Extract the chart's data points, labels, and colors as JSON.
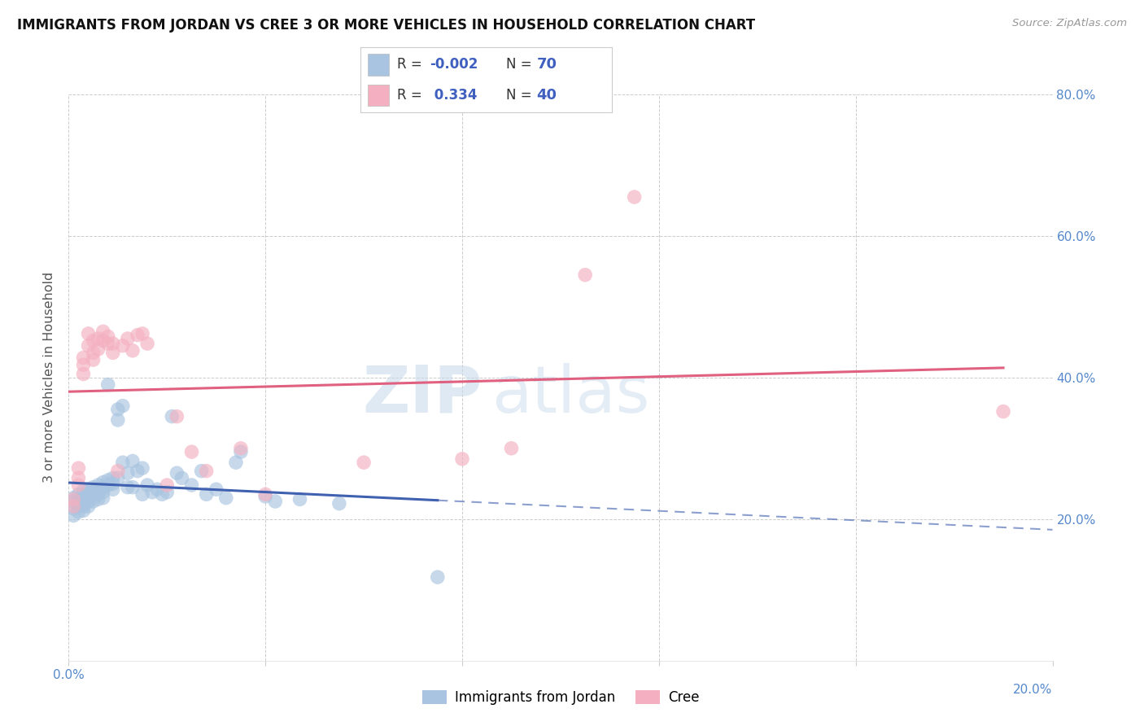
{
  "title": "IMMIGRANTS FROM JORDAN VS CREE 3 OR MORE VEHICLES IN HOUSEHOLD CORRELATION CHART",
  "source": "Source: ZipAtlas.com",
  "ylabel": "3 or more Vehicles in Household",
  "xlim": [
    0.0,
    0.2
  ],
  "ylim": [
    0.0,
    0.8
  ],
  "xtick_vals": [
    0.0,
    0.04,
    0.08,
    0.12,
    0.16,
    0.2
  ],
  "ytick_vals": [
    0.0,
    0.2,
    0.4,
    0.6,
    0.8
  ],
  "xtick_labels": [
    "0.0%",
    "",
    "",
    "",
    "",
    "20.0%"
  ],
  "ytick_labels": [
    "",
    "20.0%",
    "40.0%",
    "60.0%",
    "80.0%"
  ],
  "legend_r_jordan": "-0.002",
  "legend_n_jordan": "70",
  "legend_r_cree": "0.334",
  "legend_n_cree": "40",
  "color_jordan": "#a8c4e0",
  "color_cree": "#f4b0c0",
  "line_color_jordan": "#4060b0",
  "line_color_cree": "#e06080",
  "watermark_zip": "ZIP",
  "watermark_atlas": "atlas",
  "jordan_x": [
    0.001,
    0.001,
    0.001,
    0.001,
    0.002,
    0.002,
    0.002,
    0.002,
    0.002,
    0.003,
    0.003,
    0.003,
    0.003,
    0.003,
    0.003,
    0.004,
    0.004,
    0.004,
    0.004,
    0.004,
    0.005,
    0.005,
    0.005,
    0.005,
    0.006,
    0.006,
    0.006,
    0.006,
    0.007,
    0.007,
    0.007,
    0.007,
    0.008,
    0.008,
    0.008,
    0.009,
    0.009,
    0.009,
    0.01,
    0.01,
    0.01,
    0.011,
    0.011,
    0.012,
    0.012,
    0.013,
    0.013,
    0.014,
    0.015,
    0.015,
    0.016,
    0.017,
    0.018,
    0.019,
    0.02,
    0.021,
    0.022,
    0.023,
    0.025,
    0.027,
    0.028,
    0.03,
    0.032,
    0.034,
    0.035,
    0.04,
    0.042,
    0.047,
    0.055,
    0.075
  ],
  "jordan_y": [
    0.23,
    0.225,
    0.215,
    0.205,
    0.235,
    0.228,
    0.222,
    0.218,
    0.21,
    0.24,
    0.234,
    0.228,
    0.222,
    0.218,
    0.212,
    0.242,
    0.236,
    0.23,
    0.225,
    0.218,
    0.245,
    0.238,
    0.232,
    0.225,
    0.248,
    0.24,
    0.235,
    0.228,
    0.252,
    0.245,
    0.238,
    0.23,
    0.39,
    0.255,
    0.248,
    0.258,
    0.25,
    0.242,
    0.355,
    0.34,
    0.258,
    0.36,
    0.28,
    0.265,
    0.245,
    0.282,
    0.245,
    0.268,
    0.272,
    0.235,
    0.248,
    0.238,
    0.242,
    0.235,
    0.238,
    0.345,
    0.265,
    0.258,
    0.248,
    0.268,
    0.235,
    0.242,
    0.23,
    0.28,
    0.295,
    0.232,
    0.225,
    0.228,
    0.222,
    0.118
  ],
  "cree_x": [
    0.001,
    0.001,
    0.002,
    0.002,
    0.002,
    0.003,
    0.003,
    0.003,
    0.004,
    0.004,
    0.005,
    0.005,
    0.005,
    0.006,
    0.006,
    0.007,
    0.007,
    0.008,
    0.008,
    0.009,
    0.009,
    0.01,
    0.011,
    0.012,
    0.013,
    0.014,
    0.015,
    0.016,
    0.02,
    0.022,
    0.025,
    0.028,
    0.035,
    0.04,
    0.06,
    0.08,
    0.09,
    0.105,
    0.115,
    0.19
  ],
  "cree_y": [
    0.228,
    0.218,
    0.272,
    0.258,
    0.248,
    0.428,
    0.418,
    0.405,
    0.462,
    0.445,
    0.452,
    0.435,
    0.425,
    0.455,
    0.44,
    0.465,
    0.452,
    0.458,
    0.448,
    0.448,
    0.435,
    0.268,
    0.445,
    0.455,
    0.438,
    0.46,
    0.462,
    0.448,
    0.248,
    0.345,
    0.295,
    0.268,
    0.3,
    0.235,
    0.28,
    0.285,
    0.3,
    0.545,
    0.655,
    0.352
  ]
}
